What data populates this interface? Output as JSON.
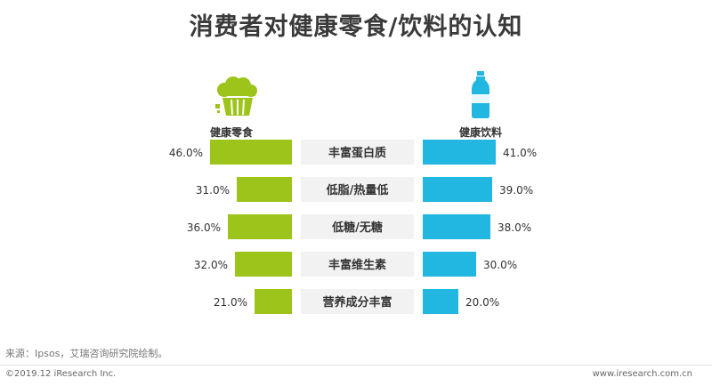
{
  "title": "消费者对健康零食/饮料的认知",
  "chart_data": {
    "type": "bar",
    "categories": [
      "丰富蛋白质",
      "低脂/热量低",
      "低糖/无糖",
      "丰富维生素",
      "营养成分丰富"
    ],
    "series": [
      {
        "name": "健康零食",
        "values": [
          46.0,
          31.0,
          36.0,
          32.0,
          21.0
        ],
        "color": "#9dc41a"
      },
      {
        "name": "健康饮料",
        "values": [
          41.0,
          39.0,
          38.0,
          30.0,
          20.0
        ],
        "color": "#22b7e0"
      }
    ],
    "value_labels": {
      "snack": [
        "46.0%",
        "31.0%",
        "36.0%",
        "32.0%",
        "21.0%"
      ],
      "drink": [
        "41.0%",
        "39.0%",
        "38.0%",
        "30.0%",
        "20.0%"
      ]
    },
    "category_bg": "#f2f2f2"
  },
  "icons": {
    "snack": "cupcake-icon",
    "drink": "bottle-icon"
  },
  "source": "来源：Ipsos，艾瑞咨询研究院绘制。",
  "copyright": "©2019.12 iResearch Inc.",
  "website": "www.iresearch.com.cn"
}
